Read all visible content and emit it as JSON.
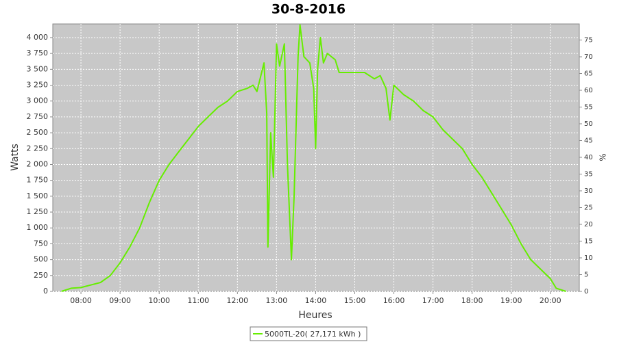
{
  "chart_data": {
    "type": "line",
    "title": "30-8-2016",
    "xlabel": "Heures",
    "ylabel": "Watts",
    "y2label": "%",
    "x": [
      7.5,
      7.75,
      8.0,
      8.25,
      8.5,
      8.75,
      9.0,
      9.25,
      9.5,
      9.75,
      10.0,
      10.25,
      10.5,
      10.75,
      11.0,
      11.25,
      11.5,
      11.75,
      12.0,
      12.25,
      12.4,
      12.5,
      12.6,
      12.68,
      12.75,
      12.78,
      12.85,
      12.92,
      13.0,
      13.08,
      13.2,
      13.28,
      13.38,
      13.45,
      13.55,
      13.6,
      13.7,
      13.85,
      13.95,
      14.0,
      14.05,
      14.12,
      14.2,
      14.3,
      14.5,
      14.6,
      14.75,
      15.0,
      15.25,
      15.5,
      15.65,
      15.8,
      15.9,
      16.0,
      16.25,
      16.5,
      16.75,
      17.0,
      17.25,
      17.5,
      17.75,
      18.0,
      18.25,
      18.5,
      18.75,
      19.0,
      19.25,
      19.5,
      19.75,
      20.0,
      20.15,
      20.4
    ],
    "series": [
      {
        "name": "5000TL-20( 27,171 kWh )",
        "color": "#66ee00",
        "values": [
          0,
          50,
          60,
          100,
          140,
          250,
          450,
          700,
          1000,
          1400,
          1750,
          2000,
          2200,
          2400,
          2600,
          2750,
          2900,
          3000,
          3150,
          3200,
          3250,
          3150,
          3400,
          3600,
          2800,
          700,
          2500,
          1800,
          3900,
          3550,
          3900,
          2000,
          500,
          1500,
          3700,
          4200,
          3700,
          3600,
          3200,
          2250,
          3500,
          4000,
          3600,
          3750,
          3650,
          3450,
          3450,
          3450,
          3450,
          3350,
          3400,
          3200,
          2700,
          3250,
          3100,
          3000,
          2850,
          2750,
          2550,
          2400,
          2250,
          2000,
          1800,
          1550,
          1300,
          1050,
          750,
          500,
          350,
          200,
          50,
          0
        ]
      }
    ],
    "xlim": [
      7.28,
      20.74
    ],
    "xticks": [
      {
        "value": 8,
        "label": "08:00"
      },
      {
        "value": 9,
        "label": "09:00"
      },
      {
        "value": 10,
        "label": "10:00"
      },
      {
        "value": 11,
        "label": "11:00"
      },
      {
        "value": 12,
        "label": "12:00"
      },
      {
        "value": 13,
        "label": "13:00"
      },
      {
        "value": 14,
        "label": "14:00"
      },
      {
        "value": 15,
        "label": "15:00"
      },
      {
        "value": 16,
        "label": "16:00"
      },
      {
        "value": 17,
        "label": "17:00"
      },
      {
        "value": 18,
        "label": "18:00"
      },
      {
        "value": 19,
        "label": "19:00"
      },
      {
        "value": 20,
        "label": "20:00"
      }
    ],
    "ylim": [
      0,
      4215
    ],
    "yticks": [
      0,
      250,
      500,
      750,
      {
        "value": 1000,
        "label": "1 000"
      },
      {
        "value": 1250,
        "label": "1 250"
      },
      {
        "value": 1500,
        "label": "1 500"
      },
      {
        "value": 1750,
        "label": "1 750"
      },
      {
        "value": 2000,
        "label": "2 000"
      },
      {
        "value": 2250,
        "label": "2 250"
      },
      {
        "value": 2500,
        "label": "2 500"
      },
      {
        "value": 2750,
        "label": "2 750"
      },
      {
        "value": 3000,
        "label": "3 000"
      },
      {
        "value": 3250,
        "label": "3 250"
      },
      {
        "value": 3500,
        "label": "3 500"
      },
      {
        "value": 3750,
        "label": "3 750"
      },
      {
        "value": 4000,
        "label": "4 000"
      }
    ],
    "y2lim": [
      0,
      79.8
    ],
    "y2ticks": [
      0,
      5,
      10,
      15,
      20,
      25,
      30,
      35,
      40,
      45,
      50,
      55,
      60,
      65,
      70,
      75
    ],
    "grid": true,
    "legend": "bottom"
  }
}
